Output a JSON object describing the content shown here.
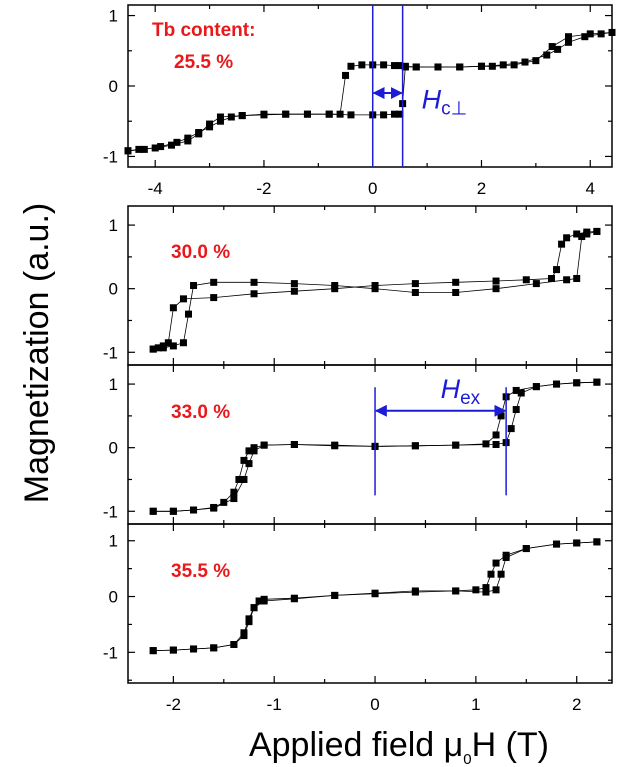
{
  "colors": {
    "label": "#e8191b",
    "annotation": "#1c1cd6",
    "marker": "#000000",
    "frame": "#000000"
  },
  "chart_data": {
    "type": "scatter",
    "ylabel": "Magnetization (a.u.)",
    "xlabel_prefix": "Applied field ",
    "xlabel_mu": "μ",
    "xlabel_sub": "0",
    "xlabel_suffix": "H (T)",
    "panels": [
      {
        "label_line1": "Tb content:",
        "label_line2": "25.5 %",
        "xlim": [
          -4.5,
          4.4
        ],
        "ylim": [
          -1.15,
          1.15
        ],
        "xticks": [
          -4,
          -2,
          0,
          2,
          4
        ],
        "xtick_labels": [
          "-4",
          "-2",
          "0",
          "2",
          "4"
        ],
        "yticks": [
          -1,
          0,
          1
        ],
        "ytick_labels": [
          "-1",
          "0",
          "1"
        ],
        "annotation": {
          "text": "H",
          "sub": "c⊥",
          "vlines": [
            0.0,
            0.55
          ],
          "arrow_from": 0.0,
          "arrow_to": 0.55,
          "arrow_y": -0.1,
          "text_x": 0.9,
          "text_y": -0.32
        },
        "series": [
          {
            "x": [
              -4.5,
              -4.2,
              -3.9,
              -3.6,
              -3.4,
              -3.2,
              -3.0,
              -2.8,
              -2.6,
              -2.4,
              -2.0,
              -1.6,
              -1.2,
              -0.8,
              -0.6,
              -0.5
            ],
            "y": [
              -0.92,
              -0.9,
              -0.86,
              -0.8,
              -0.74,
              -0.66,
              -0.58,
              -0.5,
              -0.44,
              -0.42,
              -0.4,
              -0.4,
              -0.4,
              -0.4,
              -0.4,
              0.15
            ]
          },
          {
            "x": [
              -0.4,
              -0.2,
              0.0,
              0.2,
              0.4,
              0.5,
              0.6,
              0.8,
              1.2,
              1.6,
              2.0,
              2.4,
              2.8,
              3.2,
              3.4,
              3.6,
              3.9,
              4.2,
              4.4
            ],
            "y": [
              0.28,
              0.3,
              0.3,
              0.3,
              0.29,
              0.29,
              0.28,
              0.27,
              0.27,
              0.27,
              0.28,
              0.3,
              0.34,
              0.44,
              0.52,
              0.62,
              0.7,
              0.74,
              0.76
            ]
          },
          {
            "x": [
              4.4,
              4.0,
              3.6,
              3.3,
              3.0,
              2.6,
              2.2,
              2.0,
              1.6,
              1.2,
              0.8,
              0.6,
              0.55
            ],
            "y": [
              0.76,
              0.74,
              0.7,
              0.56,
              0.36,
              0.3,
              0.28,
              0.28,
              0.27,
              0.27,
              0.27,
              0.27,
              -0.25
            ]
          },
          {
            "x": [
              0.5,
              0.4,
              0.2,
              0.0,
              -0.4,
              -0.8,
              -1.2,
              -1.6,
              -2.0,
              -2.4,
              -2.8,
              -3.0,
              -3.2,
              -3.4,
              -3.7,
              -4.0,
              -4.3,
              -4.5
            ],
            "y": [
              -0.4,
              -0.4,
              -0.41,
              -0.41,
              -0.41,
              -0.4,
              -0.4,
              -0.4,
              -0.41,
              -0.42,
              -0.44,
              -0.54,
              -0.68,
              -0.78,
              -0.84,
              -0.88,
              -0.9,
              -0.92
            ]
          }
        ]
      },
      {
        "label_line1": "30.0 %",
        "xlim": [
          -2.45,
          2.35
        ],
        "ylim": [
          -1.2,
          1.3
        ],
        "xticks": [
          -2,
          -1,
          0,
          1,
          2
        ],
        "yticks": [
          -1,
          0,
          1
        ],
        "ytick_labels": [
          "-1",
          "0",
          "1"
        ],
        "series": [
          {
            "x": [
              -2.2,
              -2.15,
              -2.1,
              -2.05,
              -2.0,
              -1.9,
              -1.6,
              -1.2,
              -0.8,
              -0.4,
              0.0,
              0.4,
              0.8,
              1.2,
              1.5,
              1.75,
              1.8,
              1.85,
              1.9,
              2.0,
              2.1,
              2.2
            ],
            "y": [
              -0.95,
              -0.93,
              -0.9,
              -0.85,
              -0.3,
              -0.16,
              -0.14,
              -0.08,
              -0.04,
              0.0,
              0.05,
              0.08,
              0.1,
              0.12,
              0.14,
              0.16,
              0.3,
              0.7,
              0.8,
              0.86,
              0.89,
              0.9
            ]
          },
          {
            "x": [
              2.2,
              2.1,
              2.05,
              2.0,
              1.9,
              1.6,
              1.2,
              0.8,
              0.4,
              0.0,
              -0.4,
              -0.8,
              -1.2,
              -1.6,
              -1.8,
              -1.85,
              -1.9,
              -2.0,
              -2.1,
              -2.2
            ],
            "y": [
              0.9,
              0.86,
              0.82,
              0.16,
              0.14,
              0.08,
              0.0,
              -0.06,
              -0.06,
              0.0,
              0.05,
              0.08,
              0.1,
              0.1,
              0.05,
              -0.4,
              -0.85,
              -0.9,
              -0.93,
              -0.95
            ]
          }
        ]
      },
      {
        "label_line1": "33.0 %",
        "xlim": [
          -2.45,
          2.35
        ],
        "ylim": [
          -1.2,
          1.3
        ],
        "xticks": [
          -2,
          -1,
          0,
          1,
          2
        ],
        "yticks": [
          -1,
          0,
          1
        ],
        "ytick_labels": [
          "-1",
          "0",
          "1"
        ],
        "annotation": {
          "text": "H",
          "sub": "ex",
          "vlines": [
            0.0,
            1.3
          ],
          "arrow_from": 0.0,
          "arrow_to": 1.3,
          "arrow_y": 0.58,
          "text_x": 0.65,
          "text_y": 0.78
        },
        "series": [
          {
            "x": [
              -2.2,
              -2.0,
              -1.8,
              -1.6,
              -1.5,
              -1.4,
              -1.35,
              -1.3,
              -1.25,
              -1.2,
              -1.1,
              -0.8,
              -0.4,
              0.0,
              0.4,
              0.8,
              1.1,
              1.2,
              1.25,
              1.3,
              1.4,
              1.6,
              1.8,
              2.0,
              2.2
            ],
            "y": [
              -1.0,
              -1.0,
              -0.98,
              -0.94,
              -0.86,
              -0.7,
              -0.5,
              -0.2,
              -0.05,
              0.0,
              0.04,
              0.05,
              0.03,
              0.02,
              0.03,
              0.04,
              0.06,
              0.2,
              0.5,
              0.8,
              0.9,
              0.96,
              1.0,
              1.02,
              1.03
            ]
          },
          {
            "x": [
              2.2,
              2.0,
              1.8,
              1.6,
              1.45,
              1.4,
              1.35,
              1.3,
              1.2,
              0.8,
              0.4,
              0.0,
              -0.4,
              -0.8,
              -1.1,
              -1.2,
              -1.25,
              -1.3,
              -1.4,
              -1.6,
              -1.8,
              -2.0,
              -2.2
            ],
            "y": [
              1.03,
              1.02,
              1.0,
              0.96,
              0.86,
              0.6,
              0.3,
              0.08,
              0.05,
              0.04,
              0.03,
              0.02,
              0.04,
              0.05,
              0.04,
              -0.05,
              -0.25,
              -0.5,
              -0.8,
              -0.95,
              -0.98,
              -1.0,
              -1.0
            ]
          }
        ]
      },
      {
        "label_line1": "35.5 %",
        "xlim": [
          -2.45,
          2.35
        ],
        "ylim": [
          -1.55,
          1.3
        ],
        "xticks": [
          -2,
          -1,
          0,
          1,
          2
        ],
        "xtick_labels": [
          "-2",
          "-1",
          "0",
          "1",
          "2"
        ],
        "yticks": [
          -1,
          0,
          1
        ],
        "ytick_labels": [
          "-1",
          "0",
          "1"
        ],
        "series": [
          {
            "x": [
              -2.2,
              -2.0,
              -1.8,
              -1.6,
              -1.4,
              -1.3,
              -1.25,
              -1.2,
              -1.15,
              -1.1,
              -0.8,
              -0.4,
              0.0,
              0.4,
              0.8,
              1.0,
              1.1,
              1.15,
              1.2,
              1.3,
              1.5,
              1.8,
              2.0,
              2.2
            ],
            "y": [
              -0.97,
              -0.96,
              -0.94,
              -0.92,
              -0.86,
              -0.7,
              -0.45,
              -0.2,
              -0.08,
              -0.05,
              -0.03,
              0.02,
              0.05,
              0.08,
              0.1,
              0.12,
              0.16,
              0.4,
              0.6,
              0.74,
              0.86,
              0.94,
              0.96,
              0.98
            ]
          },
          {
            "x": [
              2.2,
              2.0,
              1.8,
              1.5,
              1.3,
              1.25,
              1.2,
              1.1,
              0.8,
              0.4,
              0.0,
              -0.4,
              -0.8,
              -1.1,
              -1.2,
              -1.25,
              -1.3,
              -1.4,
              -1.6,
              -1.8,
              -2.0,
              -2.2
            ],
            "y": [
              0.98,
              0.96,
              0.94,
              0.86,
              0.7,
              0.4,
              0.12,
              0.08,
              0.1,
              0.1,
              0.06,
              0.02,
              -0.04,
              -0.08,
              -0.2,
              -0.4,
              -0.65,
              -0.86,
              -0.92,
              -0.94,
              -0.96,
              -0.97
            ]
          }
        ]
      }
    ]
  }
}
